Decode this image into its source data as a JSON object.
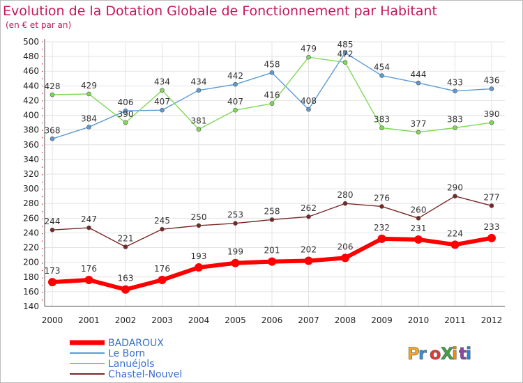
{
  "chart_data": {
    "type": "line",
    "title": "Evolution de la Dotation Globale de Fonctionnement par Habitant",
    "subtitle": "(en € et par an)",
    "x": [
      "2000",
      "2001",
      "2002",
      "2003",
      "2004",
      "2005",
      "2006",
      "2007",
      "2008",
      "2009",
      "2010",
      "2011",
      "2012"
    ],
    "ylim": [
      140,
      500
    ],
    "yticks": [
      140,
      160,
      180,
      200,
      220,
      240,
      260,
      280,
      300,
      320,
      340,
      360,
      380,
      400,
      420,
      440,
      460,
      480,
      500
    ],
    "grid": true,
    "legend_position": "bottom-left",
    "series": [
      {
        "name": "BADAROUX",
        "color": "#ff0000",
        "values": [
          173,
          176,
          163,
          176,
          193,
          199,
          201,
          202,
          206,
          232,
          231,
          224,
          233
        ]
      },
      {
        "name": "Le Born",
        "color": "#5b9bd5",
        "values": [
          368,
          384,
          406,
          407,
          434,
          442,
          458,
          408,
          485,
          454,
          444,
          433,
          436
        ]
      },
      {
        "name": "Lanuéjols",
        "color": "#7fd957",
        "values": [
          428,
          429,
          390,
          434,
          381,
          407,
          416,
          479,
          472,
          383,
          377,
          383,
          390
        ]
      },
      {
        "name": "Chastel-Nouvel",
        "color": "#7a2626",
        "values": [
          244,
          247,
          221,
          245,
          250,
          253,
          258,
          262,
          280,
          276,
          260,
          290,
          277
        ]
      }
    ]
  },
  "brand": {
    "logo_text": "ProXiti",
    "colors": [
      "#f5a623",
      "#3a8fd8",
      "#e53935",
      "#43a047",
      "#fb8c00",
      "#8e44ad",
      "#1e88e5"
    ]
  }
}
